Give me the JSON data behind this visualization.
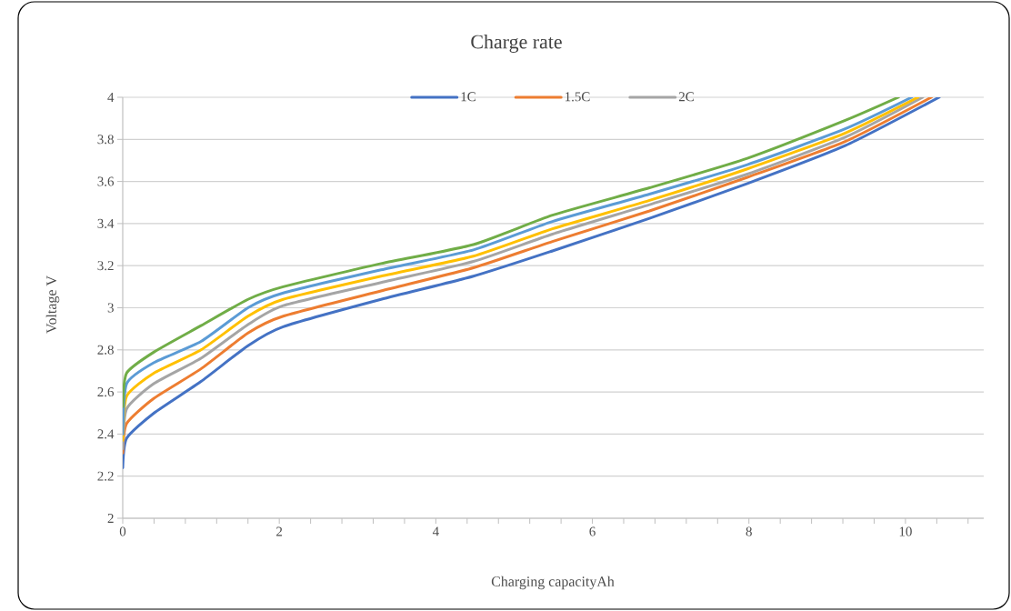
{
  "chart_data": {
    "type": "line",
    "title": "Charge rate",
    "xlabel": "Charging capacityAh",
    "ylabel": "Voltage V",
    "xlim": [
      0,
      11
    ],
    "ylim": [
      2,
      4
    ],
    "xticks": [
      0,
      {
        "value": 0.4,
        "label": null
      },
      {
        "value": 0.8,
        "label": null
      },
      {
        "value": 1.2,
        "label": null
      },
      {
        "value": 1.6,
        "label": null
      },
      2,
      {
        "value": 2.4,
        "label": null
      },
      {
        "value": 2.8,
        "label": null
      },
      {
        "value": 3.2,
        "label": null
      },
      {
        "value": 3.6,
        "label": null
      },
      4,
      {
        "value": 4.4,
        "label": null
      },
      {
        "value": 4.8,
        "label": null
      },
      {
        "value": 5.2,
        "label": null
      },
      {
        "value": 5.6,
        "label": null
      },
      6,
      {
        "value": 6.4,
        "label": null
      },
      {
        "value": 6.8,
        "label": null
      },
      {
        "value": 7.2,
        "label": null
      },
      {
        "value": 7.6,
        "label": null
      },
      8,
      {
        "value": 8.4,
        "label": null
      },
      {
        "value": 8.8,
        "label": null
      },
      {
        "value": 9.2,
        "label": null
      },
      {
        "value": 9.6,
        "label": null
      },
      10,
      {
        "value": 10.4,
        "label": null
      },
      {
        "value": 10.8,
        "label": null
      }
    ],
    "yticks": [
      2,
      2.2,
      2.4,
      2.6,
      2.8,
      3,
      3.2,
      3.4,
      3.6,
      3.8,
      4
    ],
    "grid": "y",
    "legend": "top",
    "marker": "none",
    "line_style": "solid",
    "series": [
      {
        "name": "1C",
        "color": "#4472c4",
        "x": [
          0,
          0.05,
          0.4,
          1,
          1.6,
          2.05,
          3.3,
          4.48,
          5.49,
          6.73,
          7.98,
          9.23,
          10.43
        ],
        "values": [
          2.24,
          2.38,
          2.5,
          2.65,
          2.82,
          2.91,
          3.04,
          3.15,
          3.27,
          3.425,
          3.59,
          3.77,
          4.0
        ]
      },
      {
        "name": "1.5C",
        "color": "#ed7d31",
        "x": [
          0,
          0.05,
          0.4,
          1,
          1.6,
          2.05,
          3.3,
          4.48,
          5.49,
          6.73,
          7.98,
          9.23,
          10.33
        ],
        "values": [
          2.31,
          2.45,
          2.57,
          2.71,
          2.88,
          2.96,
          3.08,
          3.19,
          3.315,
          3.46,
          3.62,
          3.79,
          4.0
        ]
      },
      {
        "name": "2C",
        "color": "#a5a5a5",
        "x": [
          0,
          0.05,
          0.4,
          1,
          1.6,
          2.05,
          3.3,
          4.48,
          5.49,
          6.73,
          7.98,
          9.23,
          10.22
        ],
        "values": [
          2.33,
          2.52,
          2.64,
          2.76,
          2.92,
          3.01,
          3.12,
          3.22,
          3.35,
          3.49,
          3.635,
          3.81,
          4.0
        ]
      },
      {
        "color": "#ffc000",
        "x": [
          0,
          0.05,
          0.4,
          1,
          1.6,
          2.05,
          3.3,
          4.48,
          5.49,
          6.73,
          7.98,
          9.23,
          10.16
        ],
        "values": [
          2.37,
          2.58,
          2.69,
          2.8,
          2.96,
          3.04,
          3.15,
          3.245,
          3.375,
          3.51,
          3.66,
          3.83,
          4.0
        ]
      },
      {
        "color": "#5b9bd5",
        "x": [
          0,
          0.05,
          0.4,
          1,
          1.6,
          2.05,
          3.3,
          4.48,
          5.49,
          6.73,
          7.98,
          9.23,
          10.08
        ],
        "values": [
          2.4,
          2.64,
          2.74,
          2.84,
          3.0,
          3.07,
          3.18,
          3.275,
          3.41,
          3.54,
          3.68,
          3.85,
          4.0
        ]
      },
      {
        "color": "#70ad47",
        "x": [
          0,
          0.05,
          0.4,
          1,
          1.6,
          2.05,
          3.3,
          4.48,
          5.49,
          6.73,
          7.98,
          9.23,
          9.91
        ],
        "values": [
          2.53,
          2.69,
          2.79,
          2.915,
          3.04,
          3.1,
          3.21,
          3.3,
          3.44,
          3.57,
          3.71,
          3.89,
          4.0
        ]
      }
    ]
  }
}
